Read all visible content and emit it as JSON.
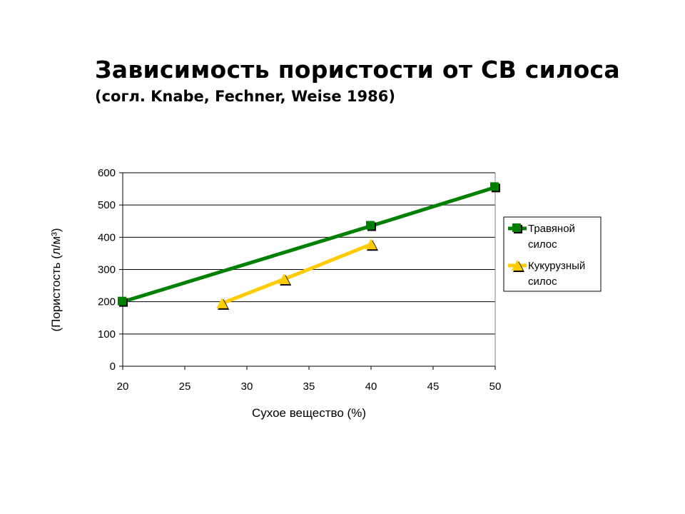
{
  "title": "Зависимость пористости от СВ силоса",
  "subtitle": "(согл. Knabe, Fechner, Weise 1986)",
  "chart_data": {
    "type": "line",
    "xlabel": "Сухое вещество (%)",
    "ylabel": "(Пористость (л/м³)",
    "xlim": [
      20,
      50
    ],
    "ylim": [
      0,
      600
    ],
    "x_ticks": [
      "20",
      "25",
      "30",
      "35",
      "40",
      "45",
      "50"
    ],
    "y_ticks": [
      "0",
      "100",
      "200",
      "300",
      "400",
      "500",
      "600"
    ],
    "grid": "horizontal",
    "legend_position": "right",
    "series": [
      {
        "name_lines": [
          "Травяной",
          "силос"
        ],
        "color": "#008000",
        "marker": "square",
        "x": [
          20,
          40,
          50
        ],
        "y": [
          200,
          435,
          555
        ]
      },
      {
        "name_lines": [
          "Кукурузный",
          "силос"
        ],
        "color": "#FFCC00",
        "marker": "triangle",
        "x": [
          28,
          33,
          40
        ],
        "y": [
          195,
          270,
          378
        ]
      }
    ]
  }
}
